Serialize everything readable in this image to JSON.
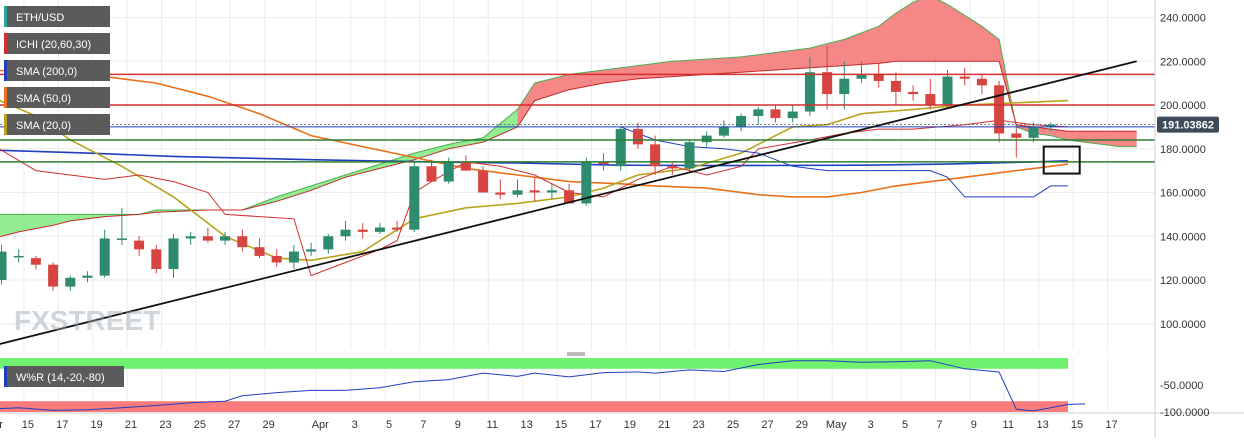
{
  "chart_data": {
    "type": "candlestick",
    "symbol": "ETH/USD",
    "legend": [
      {
        "label": "ETH/USD",
        "color": "#26a69a"
      },
      {
        "label": "ICHI (20,60,30)",
        "color": "#d32f2f"
      },
      {
        "label": "SMA (200,0)",
        "color": "#1f3fbf"
      },
      {
        "label": "SMA (50,0)",
        "color": "#e8711a"
      },
      {
        "label": "SMA (20,0)",
        "color": "#b8a41c"
      }
    ],
    "price_axis": {
      "ylim": [
        88,
        248
      ],
      "ticks": [
        100,
        120,
        140,
        160,
        180,
        200,
        220,
        240
      ],
      "tick_labels": [
        "100.0000",
        "120.0000",
        "140.0000",
        "160.0000",
        "180.0000",
        "200.0000",
        "220.0000",
        "240.0000"
      ]
    },
    "last_price": 191.03862,
    "last_price_label": "191.03862",
    "x_axis": {
      "tick_labels": [
        "Mar",
        "15",
        "17",
        "19",
        "21",
        "23",
        "25",
        "27",
        "29",
        "Apr",
        "3",
        "5",
        "7",
        "9",
        "11",
        "13",
        "15",
        "17",
        "19",
        "21",
        "23",
        "25",
        "27",
        "29",
        "May",
        "3",
        "5",
        "7",
        "9",
        "11",
        "13",
        "15",
        "17"
      ]
    },
    "candles": [
      [
        120,
        136,
        118,
        133
      ],
      [
        131,
        134,
        128,
        131
      ],
      [
        130,
        131,
        125,
        127
      ],
      [
        127,
        128,
        115,
        117
      ],
      [
        117,
        122,
        115,
        121
      ],
      [
        121,
        124,
        119,
        122
      ],
      [
        122,
        143,
        121,
        139
      ],
      [
        139,
        153,
        136,
        139
      ],
      [
        138,
        140,
        131,
        134
      ],
      [
        134,
        136,
        123,
        125
      ],
      [
        125,
        141,
        121,
        139
      ],
      [
        139,
        142,
        136,
        140
      ],
      [
        140,
        144,
        137,
        138
      ],
      [
        138,
        142,
        136,
        140
      ],
      [
        140,
        143,
        133,
        135
      ],
      [
        135,
        139,
        130,
        131
      ],
      [
        131,
        134,
        126,
        128
      ],
      [
        128,
        136,
        125,
        133
      ],
      [
        133,
        137,
        131,
        134
      ],
      [
        134,
        141,
        132,
        140
      ],
      [
        140,
        147,
        138,
        143
      ],
      [
        143,
        146,
        139,
        142
      ],
      [
        142,
        146,
        141,
        144
      ],
      [
        144,
        147,
        142,
        143
      ],
      [
        143,
        174,
        142,
        172
      ],
      [
        172,
        175,
        165,
        165
      ],
      [
        165,
        176,
        164,
        174
      ],
      [
        174,
        177,
        170,
        170
      ],
      [
        170,
        172,
        160,
        160
      ],
      [
        160,
        166,
        157,
        159
      ],
      [
        159,
        166,
        158,
        161
      ],
      [
        161,
        167,
        156,
        160
      ],
      [
        160,
        164,
        157,
        161
      ],
      [
        161,
        164,
        155,
        155
      ],
      [
        155,
        176,
        154,
        174
      ],
      [
        174,
        178,
        170,
        173
      ],
      [
        172,
        190,
        170,
        189
      ],
      [
        189,
        192,
        180,
        182
      ],
      [
        182,
        186,
        168,
        172
      ],
      [
        172,
        174,
        168,
        171
      ],
      [
        171,
        184,
        169,
        183
      ],
      [
        183,
        188,
        181,
        186
      ],
      [
        186,
        193,
        185,
        190
      ],
      [
        190,
        196,
        188,
        195
      ],
      [
        195,
        199,
        191,
        198
      ],
      [
        198,
        200,
        192,
        194
      ],
      [
        194,
        200,
        192,
        197
      ],
      [
        197,
        222,
        195,
        215
      ],
      [
        215,
        227,
        198,
        205
      ],
      [
        205,
        220,
        198,
        212
      ],
      [
        212,
        220,
        210,
        214
      ],
      [
        214,
        219,
        208,
        211
      ],
      [
        211,
        215,
        200,
        206
      ],
      [
        206,
        209,
        202,
        205
      ],
      [
        205,
        212,
        198,
        200
      ],
      [
        200,
        216,
        199,
        213
      ],
      [
        213,
        217,
        209,
        212
      ],
      [
        212,
        214,
        205,
        209
      ],
      [
        209,
        211,
        183,
        187
      ],
      [
        187,
        190,
        176,
        185
      ],
      [
        185,
        192,
        183,
        190
      ],
      [
        190,
        192,
        188,
        191
      ]
    ],
    "wr": {
      "label": "W%R (14,-20,-80)",
      "ylim": [
        -100,
        0
      ],
      "overbought": -20,
      "oversold": -80,
      "ticks": [
        -50,
        -100
      ],
      "tick_labels": [
        "-50.0000",
        "-100.0000"
      ]
    }
  }
}
